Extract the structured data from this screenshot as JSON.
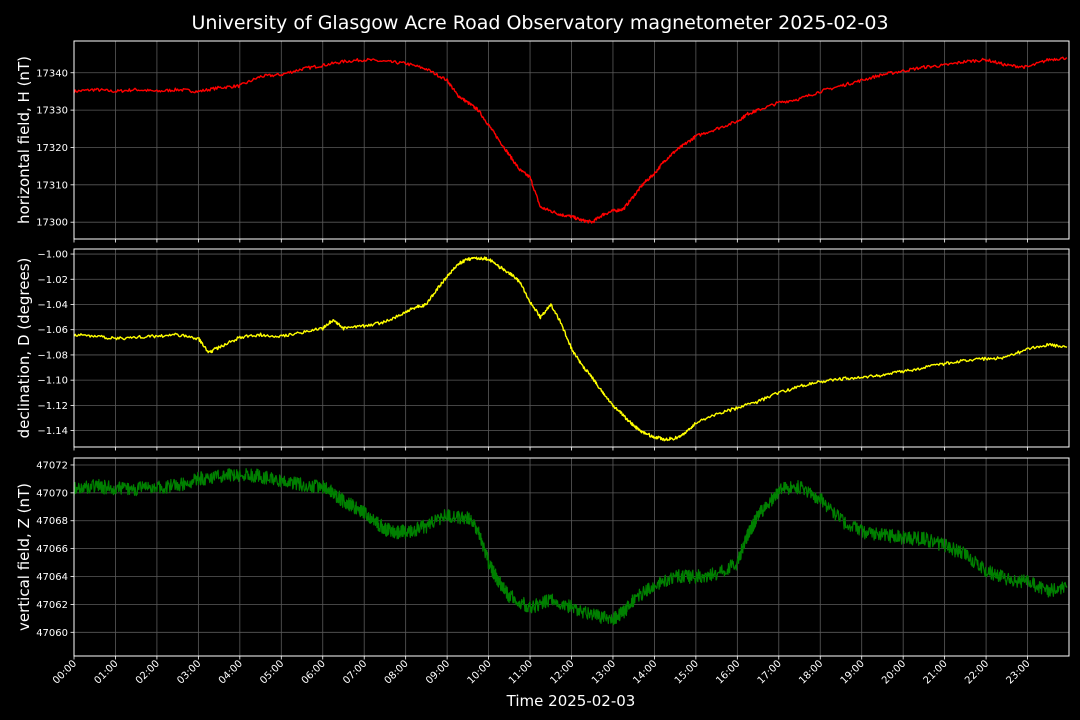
{
  "title": "University of Glasgow Acre Road Observatory magnetometer 2025-02-03",
  "xlabel": "Time 2025-02-03",
  "x_ticks": [
    "00:00",
    "01:00",
    "02:00",
    "03:00",
    "04:00",
    "05:00",
    "06:00",
    "07:00",
    "08:00",
    "09:00",
    "10:00",
    "11:00",
    "12:00",
    "13:00",
    "14:00",
    "15:00",
    "16:00",
    "17:00",
    "18:00",
    "19:00",
    "20:00",
    "21:00",
    "22:00",
    "23:00"
  ],
  "chart_data": [
    {
      "type": "line",
      "ylabel": "horizontal field, H (nT)",
      "color": "#ff0000",
      "xlim": [
        0,
        24
      ],
      "ylim": [
        17295.5,
        17348.5
      ],
      "yticks": [
        17300,
        17310,
        17320,
        17330,
        17340
      ],
      "grid": true,
      "x": [
        0,
        0.5,
        1,
        1.5,
        2,
        2.5,
        3,
        3.5,
        4,
        4.5,
        5,
        5.5,
        6,
        6.5,
        7,
        7.5,
        8,
        8.5,
        9,
        9.25,
        9.5,
        9.75,
        10,
        10.25,
        10.5,
        10.75,
        11,
        11.25,
        11.5,
        11.75,
        12,
        12.25,
        12.5,
        12.75,
        13,
        13.25,
        13.5,
        13.75,
        14,
        14.25,
        14.5,
        14.75,
        15,
        15.5,
        16,
        16.25,
        16.5,
        17,
        17.5,
        18,
        18.5,
        19,
        19.5,
        20,
        20.5,
        21,
        21.5,
        22,
        22.5,
        23,
        23.5,
        23.95
      ],
      "y": [
        17335,
        17335.5,
        17335,
        17335.5,
        17335,
        17335.5,
        17335,
        17336,
        17336.5,
        17339,
        17339.5,
        17341,
        17342,
        17343,
        17343.5,
        17343,
        17342.5,
        17341,
        17338,
        17334,
        17332,
        17330,
        17326,
        17322,
        17318,
        17314,
        17312,
        17304,
        17303,
        17302,
        17301.5,
        17300.5,
        17300,
        17302,
        17303,
        17303.5,
        17307,
        17310.5,
        17313,
        17316.5,
        17319,
        17321,
        17323,
        17325,
        17327,
        17329,
        17330,
        17332,
        17333,
        17335,
        17336.5,
        17338,
        17339.5,
        17340.5,
        17341.5,
        17342,
        17343,
        17343.5,
        17342,
        17341.5,
        17343.5,
        17344
      ]
    },
    {
      "type": "line",
      "ylabel": "declination, D (degrees)",
      "color": "#ffff00",
      "xlim": [
        0,
        24
      ],
      "ylim": [
        -1.153,
        -0.996
      ],
      "yticks": [
        -1.0,
        -1.02,
        -1.04,
        -1.06,
        -1.08,
        -1.1,
        -1.12,
        -1.14
      ],
      "ytick_labels": [
        "−1.00",
        "−1.02",
        "−1.04",
        "−1.06",
        "−1.08",
        "−1.10",
        "−1.12",
        "−1.14"
      ],
      "grid": true,
      "x": [
        0,
        0.5,
        1,
        1.5,
        2,
        2.5,
        3,
        3.25,
        3.5,
        4,
        4.5,
        5,
        5.5,
        6,
        6.25,
        6.5,
        7,
        7.5,
        8,
        8.25,
        8.5,
        8.75,
        9,
        9.25,
        9.5,
        9.75,
        10,
        10.25,
        10.5,
        10.75,
        11,
        11.25,
        11.5,
        11.75,
        12,
        12.25,
        12.5,
        12.75,
        13,
        13.25,
        13.5,
        13.75,
        14,
        14.25,
        14.5,
        14.75,
        15,
        15.5,
        16,
        16.5,
        17,
        17.5,
        18,
        18.5,
        19,
        19.5,
        20,
        20.5,
        21,
        21.5,
        22,
        22.5,
        23,
        23.5,
        23.95
      ],
      "y": [
        -1.064,
        -1.065,
        -1.067,
        -1.066,
        -1.065,
        -1.064,
        -1.067,
        -1.078,
        -1.074,
        -1.066,
        -1.064,
        -1.065,
        -1.062,
        -1.059,
        -1.052,
        -1.059,
        -1.057,
        -1.054,
        -1.046,
        -1.042,
        -1.04,
        -1.028,
        -1.018,
        -1.008,
        -1.004,
        -1.003,
        -1.004,
        -1.01,
        -1.015,
        -1.022,
        -1.038,
        -1.05,
        -1.04,
        -1.055,
        -1.075,
        -1.088,
        -1.098,
        -1.11,
        -1.12,
        -1.128,
        -1.136,
        -1.142,
        -1.145,
        -1.147,
        -1.146,
        -1.142,
        -1.134,
        -1.127,
        -1.122,
        -1.117,
        -1.11,
        -1.105,
        -1.101,
        -1.099,
        -1.098,
        -1.096,
        -1.093,
        -1.09,
        -1.087,
        -1.084,
        -1.083,
        -1.082,
        -1.075,
        -1.072,
        -1.074
      ]
    },
    {
      "type": "line",
      "ylabel": "vertical field, Z (nT)",
      "color": "#008000",
      "xlim": [
        0,
        24
      ],
      "ylim": [
        47058.3,
        47072.5
      ],
      "yticks": [
        47060,
        47062,
        47064,
        47066,
        47068,
        47070,
        47072
      ],
      "grid": true,
      "x": [
        0,
        0.5,
        1,
        1.5,
        2,
        2.5,
        3,
        3.5,
        4,
        4.5,
        5,
        5.5,
        6,
        6.25,
        6.5,
        6.75,
        7,
        7.25,
        7.5,
        7.75,
        8,
        8.5,
        9,
        9.5,
        9.75,
        10,
        10.25,
        10.5,
        11,
        11.5,
        12,
        12.5,
        13,
        13.25,
        13.5,
        14,
        14.5,
        15,
        15.5,
        16,
        16.25,
        16.5,
        16.75,
        17,
        17.5,
        18,
        18.5,
        19,
        19.5,
        20,
        20.5,
        21,
        21.5,
        22,
        22.5,
        23,
        23.5,
        23.95
      ],
      "y": [
        47070.3,
        47070.5,
        47070.3,
        47070.3,
        47070.4,
        47070.5,
        47071,
        47071.2,
        47071.3,
        47071.2,
        47070.8,
        47070.6,
        47070.4,
        47070,
        47069.4,
        47069,
        47068.6,
        47068,
        47067.4,
        47067.2,
        47067.2,
        47067.6,
        47068.4,
        47068.2,
        47067.2,
        47065,
        47063.6,
        47062.6,
        47061.8,
        47062.3,
        47061.8,
        47061.2,
        47061,
        47061.4,
        47062.3,
        47063.4,
        47064,
        47064,
        47064.2,
        47065,
        47067,
        47068.4,
        47069.2,
        47070.2,
        47070.4,
        47069.6,
        47068,
        47067.2,
        47067,
        47066.8,
        47066.7,
        47066.2,
        47065.6,
        47064.4,
        47063.8,
        47063.6,
        47063,
        47063.2
      ]
    }
  ]
}
